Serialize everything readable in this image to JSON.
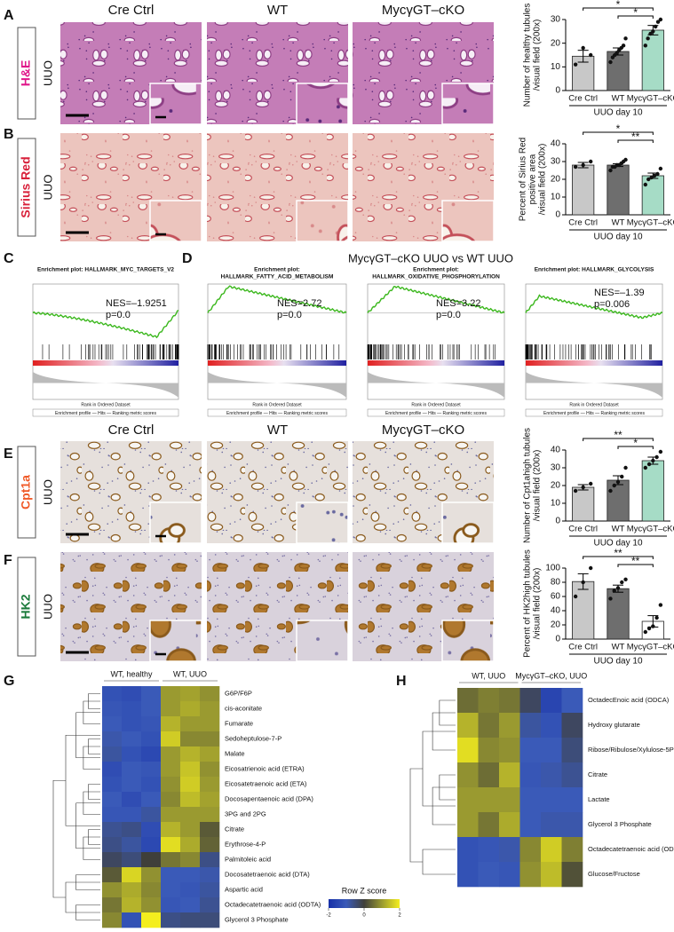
{
  "panel_letters": [
    "A",
    "B",
    "C",
    "D",
    "E",
    "F",
    "G",
    "H"
  ],
  "header_top": [
    "Cre Ctrl",
    "WT",
    "MycγGT–cKO"
  ],
  "header_bottom": [
    "Cre Ctrl",
    "WT",
    "MycγGT–cKO"
  ],
  "stains": [
    "H&E",
    "Sirius Red",
    "Cpt1a",
    "HK2"
  ],
  "conditions": [
    "UUO",
    "UUO",
    "UUO",
    "UUO"
  ],
  "chart_data": [
    {
      "type": "bar",
      "ylabel": [
        "Number of healthy tubules",
        "/visual field (200x)"
      ],
      "xlabel": "UUO day 10",
      "categories": [
        "Cre Ctrl",
        "WT",
        "MycγGT–cKO"
      ],
      "values": [
        14.5,
        16.5,
        25.5
      ],
      "errors": [
        2.5,
        1.5,
        2
      ],
      "points": [
        [
          11,
          18,
          15
        ],
        [
          12,
          14,
          15,
          16,
          17,
          18,
          19,
          22
        ],
        [
          19,
          22,
          24,
          25,
          27,
          29,
          30
        ]
      ],
      "colors": [
        "#c8c8c8",
        "#6e6e6e",
        "#a6dcc6"
      ],
      "ylim": [
        0,
        30
      ],
      "yticks": [
        0,
        10,
        20,
        30
      ],
      "significance": [
        {
          "from": 0,
          "to": 2,
          "label": "*"
        },
        {
          "from": 1,
          "to": 2,
          "label": "*"
        }
      ]
    },
    {
      "type": "bar",
      "ylabel": [
        "Percent of Sirius Red",
        "positive area",
        "/visual field (200x)"
      ],
      "xlabel": "UUO day 10",
      "categories": [
        "Cre Ctrl",
        "WT",
        "MycγGT–cKO"
      ],
      "values": [
        28,
        28,
        22
      ],
      "errors": [
        1.5,
        0.8,
        1.5
      ],
      "points": [
        [
          27,
          28,
          30
        ],
        [
          25,
          27,
          27,
          28,
          28,
          29,
          30,
          31
        ],
        [
          17,
          20,
          21,
          22,
          23,
          26
        ]
      ],
      "colors": [
        "#c8c8c8",
        "#6e6e6e",
        "#a6dcc6"
      ],
      "ylim": [
        0,
        40
      ],
      "yticks": [
        0,
        10,
        20,
        30,
        40
      ],
      "significance": [
        {
          "from": 0,
          "to": 2,
          "label": "*"
        },
        {
          "from": 1,
          "to": 2,
          "label": "**"
        }
      ]
    },
    {
      "type": "bar",
      "ylabel": [
        "Number of Cpt1ahigh tubules",
        "/visual field (200x)"
      ],
      "xlabel": "UUO day 10",
      "categories": [
        "Cre Ctrl",
        "WT",
        "MycγGT–cKO"
      ],
      "values": [
        19,
        23,
        34
      ],
      "errors": [
        1.5,
        2.5,
        2
      ],
      "points": [
        [
          17,
          19,
          21
        ],
        [
          17,
          20,
          22,
          25,
          30
        ],
        [
          30,
          32,
          34,
          36,
          39
        ]
      ],
      "colors": [
        "#c8c8c8",
        "#6e6e6e",
        "#a6dcc6"
      ],
      "ylim": [
        0,
        40
      ],
      "yticks": [
        0,
        10,
        20,
        30,
        40
      ],
      "significance": [
        {
          "from": 0,
          "to": 2,
          "label": "**"
        },
        {
          "from": 1,
          "to": 2,
          "label": "*"
        }
      ]
    },
    {
      "type": "bar",
      "ylabel": [
        "Percent of HK2high tubules",
        "/visual field (200x)"
      ],
      "xlabel": "UUO day 10",
      "categories": [
        "Cre Ctrl",
        "WT",
        "MycγGT–cKO"
      ],
      "values": [
        81,
        71,
        25
      ],
      "errors": [
        11,
        5,
        8
      ],
      "points": [
        [
          60,
          80,
          100
        ],
        [
          57,
          68,
          72,
          80,
          84
        ],
        [
          10,
          15,
          18,
          30,
          48
        ]
      ],
      "colors": [
        "#c8c8c8",
        "#6e6e6e",
        "#ffffff"
      ],
      "ylim": [
        0,
        100
      ],
      "yticks": [
        0,
        20,
        40,
        60,
        80,
        100
      ],
      "significance": [
        {
          "from": 0,
          "to": 2,
          "label": "**"
        },
        {
          "from": 1,
          "to": 2,
          "label": "**"
        }
      ]
    }
  ],
  "gsea": {
    "title": "MycγGT–cKO UUO vs WT UUO",
    "x_axis": "Rank in Ordered Dataset",
    "legend": "Enrichment profile — Hits — Ranking metric scores",
    "plots": [
      {
        "title": [
          "Enrichment plot: HALLMARK_MYC_TARGETS_V2"
        ],
        "nes": "NES=–1.9251",
        "p": "p=0.0"
      },
      {
        "title": [
          "Enrichment plot:",
          "HALLMARK_FATTY_ACID_METABOLISM"
        ],
        "nes": "NES=2.72",
        "p": "p=0.0"
      },
      {
        "title": [
          "Enrichment plot:",
          "HALLMARK_OXIDATIVE_PHOSPHORYLATION"
        ],
        "nes": "NES=3.22",
        "p": "p=0.0"
      },
      {
        "title": [
          "Enrichment plot: HALLMARK_GLYCOLYSIS"
        ],
        "nes": "NES=–1.39",
        "p": "p=0.006"
      }
    ]
  },
  "heatmaps": [
    {
      "groups": [
        "WT, healthy",
        "WT, UUO"
      ],
      "rows": [
        "G6P/F6P",
        "cis-aconitate",
        "Fumarate",
        "Sedoheptulose-7-P",
        "Malate",
        "Eicosatrienoic acid (ETRA)",
        "Eicosatetraenoic acid (ETA)",
        "Docosapentaenoic acid (DPA)",
        "3PG and 2PG",
        "Citrate",
        "Erythrose-4-P",
        "Palmitoleic acid",
        "Docosatetraenoic acid (DTA)",
        "Aspartic acid",
        "Octadecatetraenoic acid (ODTA)",
        "Glycerol 3 Phosphate"
      ],
      "z": [
        [
          -1.2,
          -1.3,
          -1.0,
          1.0,
          1.1,
          0.9
        ],
        [
          -1.1,
          -1.2,
          -1.0,
          1.0,
          1.2,
          1.0
        ],
        [
          -1.0,
          -1.2,
          -1.1,
          1.3,
          1.0,
          1.0
        ],
        [
          -0.9,
          -1.0,
          -1.2,
          1.6,
          0.8,
          0.8
        ],
        [
          -0.8,
          -1.2,
          -1.4,
          1.0,
          1.3,
          1.1
        ],
        [
          -1.3,
          -1.0,
          -1.1,
          1.0,
          1.5,
          0.9
        ],
        [
          -1.2,
          -1.0,
          -1.2,
          0.9,
          1.6,
          1.0
        ],
        [
          -1.0,
          -1.3,
          -1.0,
          0.8,
          1.4,
          1.1
        ],
        [
          -1.1,
          -1.1,
          -0.8,
          1.0,
          1.0,
          1.0
        ],
        [
          -0.7,
          -0.6,
          -1.3,
          1.3,
          1.0,
          0.3
        ],
        [
          -0.6,
          -0.8,
          -1.4,
          1.8,
          1.2,
          0.4
        ],
        [
          -0.3,
          -0.5,
          0.0,
          0.6,
          0.8,
          -0.6
        ],
        [
          0.3,
          1.7,
          0.9,
          -1.0,
          -1.0,
          -0.9
        ],
        [
          0.9,
          1.2,
          0.8,
          -1.0,
          -1.1,
          -0.8
        ],
        [
          0.6,
          1.3,
          0.9,
          -1.1,
          -1.0,
          -0.7
        ],
        [
          0.8,
          -1.2,
          2.0,
          -0.6,
          -0.5,
          -0.5
        ]
      ]
    },
    {
      "groups": [
        "WT, UUO",
        "MycγGT–cKO, UUO"
      ],
      "rows": [
        "OctadecEnoic acid (ODCA)",
        "Hydroxy glutarate",
        "Ribose/Ribulose/Xylulose-5P",
        "Citrate",
        "Lactate",
        "Glycerol 3 Phosphate",
        "Octadecatetraenoic acid (ODTA)",
        "Glucose/Fructose"
      ],
      "z": [
        [
          0.5,
          0.7,
          0.6,
          -0.3,
          -1.5,
          -1.0
        ],
        [
          1.3,
          0.6,
          1.0,
          -0.8,
          -1.2,
          -0.3
        ],
        [
          1.8,
          0.8,
          0.9,
          -1.0,
          -1.0,
          -0.5
        ],
        [
          0.9,
          0.5,
          1.3,
          -1.1,
          -0.9,
          -0.7
        ],
        [
          1.0,
          1.0,
          1.0,
          -1.0,
          -1.0,
          -1.0
        ],
        [
          1.0,
          0.6,
          1.2,
          -1.0,
          -0.9,
          -0.9
        ],
        [
          -1.2,
          -1.1,
          -0.9,
          0.8,
          1.6,
          0.7
        ],
        [
          -1.2,
          -1.0,
          -1.1,
          0.9,
          1.4,
          0.2
        ]
      ]
    }
  ],
  "colorbar": {
    "title": "Row Z score",
    "ticks": [
      -2,
      0,
      2
    ]
  }
}
